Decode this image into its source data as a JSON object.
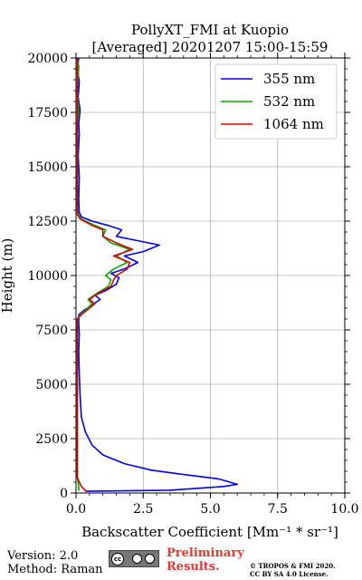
{
  "title": "PollyXT_FMI at Kuopio",
  "subtitle": "[Averaged] 20201207 15:00-15:59",
  "footer": {
    "version": "Version: 2.0",
    "method": "Method: Raman",
    "preliminary_line1": "Preliminary",
    "preliminary_line2": "Results.",
    "copyright_line1": "© TROPOS & FMI 2020.",
    "copyright_line2": "CC BY SA 4.0 License.",
    "license_badge": "cc by sa"
  },
  "chart_data": {
    "type": "line",
    "title": "PollyXT_FMI at Kuopio",
    "subtitle": "[Averaged] 20201207 15:00-15:59",
    "xlabel": "Backscatter Coefficient [Mm⁻¹ * sr⁻¹]",
    "ylabel": "Height (m)",
    "xlim": [
      0,
      10
    ],
    "ylim": [
      0,
      20000
    ],
    "xticks": [
      0,
      2.5,
      5,
      7.5,
      10
    ],
    "xtick_labels": [
      "0.0",
      "2.5",
      "5.0",
      "7.5",
      "10.0"
    ],
    "yticks": [
      0,
      2500,
      5000,
      7500,
      10000,
      12500,
      15000,
      17500,
      20000
    ],
    "ytick_labels": [
      "0",
      "2500",
      "5000",
      "7500",
      "10000",
      "12500",
      "15000",
      "17500",
      "20000"
    ],
    "grid": true,
    "legend_position": "top-right",
    "series": [
      {
        "name": "355 nm",
        "color": "#0000ee",
        "points": [
          [
            0.35,
            80
          ],
          [
            3.5,
            130
          ],
          [
            5.5,
            300
          ],
          [
            6.0,
            400
          ],
          [
            5.3,
            650
          ],
          [
            4.0,
            850
          ],
          [
            2.8,
            1050
          ],
          [
            1.8,
            1350
          ],
          [
            1.0,
            1750
          ],
          [
            0.6,
            2200
          ],
          [
            0.35,
            2800
          ],
          [
            0.2,
            3500
          ],
          [
            0.15,
            4500
          ],
          [
            0.12,
            5500
          ],
          [
            0.1,
            6500
          ],
          [
            0.12,
            7300
          ],
          [
            0.1,
            7800
          ],
          [
            0.1,
            8200
          ],
          [
            0.3,
            8400
          ],
          [
            0.55,
            8600
          ],
          [
            0.9,
            8900
          ],
          [
            0.7,
            9100
          ],
          [
            1.1,
            9300
          ],
          [
            1.5,
            9600
          ],
          [
            1.6,
            9900
          ],
          [
            1.3,
            10100
          ],
          [
            1.8,
            10300
          ],
          [
            2.3,
            10600
          ],
          [
            1.8,
            10900
          ],
          [
            2.5,
            11100
          ],
          [
            3.1,
            11400
          ],
          [
            2.3,
            11600
          ],
          [
            1.5,
            11800
          ],
          [
            1.7,
            12100
          ],
          [
            1.2,
            12300
          ],
          [
            0.6,
            12500
          ],
          [
            0.2,
            12700
          ],
          [
            0.12,
            12900
          ],
          [
            0.1,
            13500
          ],
          [
            0.12,
            14500
          ],
          [
            0.08,
            15500
          ],
          [
            0.12,
            16500
          ],
          [
            0.1,
            17000
          ],
          [
            0.15,
            17600
          ],
          [
            0.08,
            18200
          ],
          [
            0.12,
            18900
          ],
          [
            0.05,
            19500
          ],
          [
            0.1,
            20000
          ]
        ]
      },
      {
        "name": "532 nm",
        "color": "#00aa00",
        "points": [
          [
            0.1,
            100
          ],
          [
            0.1,
            300
          ],
          [
            0.05,
            700
          ],
          [
            0.05,
            2000
          ],
          [
            0.05,
            5000
          ],
          [
            0.05,
            8000
          ],
          [
            0.15,
            8200
          ],
          [
            0.35,
            8400
          ],
          [
            0.6,
            8700
          ],
          [
            0.45,
            8900
          ],
          [
            0.8,
            9200
          ],
          [
            1.2,
            9500
          ],
          [
            1.3,
            9800
          ],
          [
            1.1,
            10000
          ],
          [
            1.4,
            10300
          ],
          [
            1.9,
            10600
          ],
          [
            1.5,
            10900
          ],
          [
            2.0,
            11200
          ],
          [
            1.3,
            11500
          ],
          [
            1.0,
            11800
          ],
          [
            1.1,
            12100
          ],
          [
            0.7,
            12300
          ],
          [
            0.2,
            12600
          ],
          [
            0.08,
            12800
          ],
          [
            0.05,
            13200
          ],
          [
            0.05,
            15000
          ],
          [
            0.05,
            17000
          ],
          [
            0.1,
            17500
          ],
          [
            0.05,
            18500
          ],
          [
            0.1,
            19600
          ],
          [
            0.05,
            20000
          ]
        ]
      },
      {
        "name": "1064 nm",
        "color": "#dd0000",
        "points": [
          [
            0.4,
            50
          ],
          [
            0.2,
            300
          ],
          [
            0.05,
            700
          ],
          [
            0.05,
            2000
          ],
          [
            0.05,
            5000
          ],
          [
            0.05,
            8000
          ],
          [
            0.2,
            8200
          ],
          [
            0.4,
            8400
          ],
          [
            0.7,
            8700
          ],
          [
            0.5,
            8900
          ],
          [
            0.85,
            9200
          ],
          [
            1.3,
            9500
          ],
          [
            1.4,
            9800
          ],
          [
            1.5,
            10000
          ],
          [
            1.9,
            10300
          ],
          [
            2.0,
            10600
          ],
          [
            1.4,
            10900
          ],
          [
            2.1,
            11200
          ],
          [
            1.5,
            11500
          ],
          [
            1.0,
            11800
          ],
          [
            1.0,
            12100
          ],
          [
            0.6,
            12300
          ],
          [
            0.15,
            12600
          ],
          [
            0.05,
            12800
          ],
          [
            0.05,
            13200
          ],
          [
            0.05,
            15000
          ],
          [
            0.05,
            17000
          ],
          [
            0.05,
            18500
          ],
          [
            0.05,
            20000
          ]
        ]
      }
    ]
  }
}
